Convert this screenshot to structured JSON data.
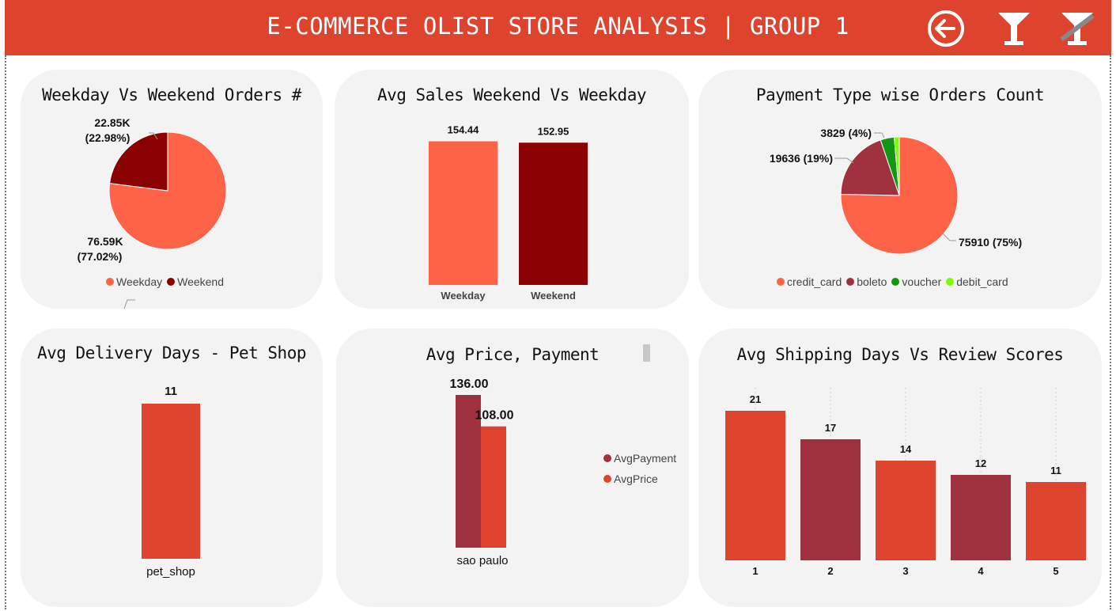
{
  "header": {
    "title": "E-COMMERCE OLIST STORE ANALYSIS | GROUP 1",
    "back_icon": "back-arrow-circle-icon",
    "filter_icon": "filter-funnel-icon",
    "clear_filter_icon": "clear-filter-funnel-icon"
  },
  "colors": {
    "header": "#de432e",
    "weekday": "#ff6347",
    "weekend": "#8b0000",
    "bar_red": "#de432e",
    "bar_maroon": "#a0313e",
    "credit_card": "#ff6347",
    "boleto": "#a0313e",
    "voucher": "#119711",
    "debit_card": "#7cfc00"
  },
  "chart_data": [
    {
      "id": "weekday_weekend_orders",
      "type": "pie",
      "title": "Weekday Vs Weekend Orders #",
      "labels": [
        "Weekday",
        "Weekend"
      ],
      "values": [
        76.59,
        22.85
      ],
      "data_labels": [
        [
          "76.59K",
          "(77.02%)"
        ],
        [
          "22.85K",
          "(22.98%)"
        ]
      ],
      "legend": "bottom"
    },
    {
      "id": "avg_sales_weekend_weekday",
      "type": "bar",
      "title": "Avg Sales Weekend Vs Weekday",
      "categories": [
        "Weekday",
        "Weekend"
      ],
      "values": [
        154.44,
        152.95
      ],
      "data_labels": [
        "154.44",
        "152.95"
      ]
    },
    {
      "id": "payment_type_orders",
      "type": "pie",
      "title": "Payment Type wise Orders Count",
      "labels": [
        "credit_card",
        "boleto",
        "voucher",
        "debit_card"
      ],
      "values": [
        75910,
        19636,
        3829,
        1400
      ],
      "data_labels": [
        "75910 (75%)",
        "19636 (19%)",
        "3829 (4%)",
        ""
      ],
      "legend": "bottom"
    },
    {
      "id": "avg_delivery_pet_shop",
      "type": "bar",
      "title": "Avg Delivery Days - Pet Shop",
      "categories": [
        "pet_shop"
      ],
      "values": [
        11
      ],
      "data_labels": [
        "11"
      ]
    },
    {
      "id": "avg_price_payment",
      "type": "bar",
      "title": "Avg Price, Payment",
      "categories": [
        "sao paulo"
      ],
      "series": [
        {
          "name": "AvgPayment",
          "values": [
            136.0
          ]
        },
        {
          "name": "AvgPrice",
          "values": [
            108.0
          ]
        }
      ],
      "data_labels": [
        "136.00",
        "108.00"
      ],
      "legend": "right"
    },
    {
      "id": "avg_shipping_review",
      "type": "bar",
      "title": "Avg Shipping Days Vs Review Scores",
      "categories": [
        "1",
        "2",
        "3",
        "4",
        "5"
      ],
      "values": [
        21,
        17,
        14,
        12,
        11
      ],
      "data_labels": [
        "21",
        "17",
        "14",
        "12",
        "11"
      ]
    }
  ]
}
